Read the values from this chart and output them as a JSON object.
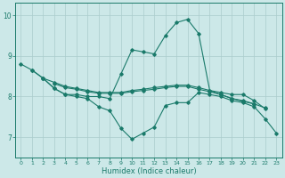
{
  "bg_color": "#cce8e8",
  "line_color": "#1a7a6a",
  "grid_color": "#aacccc",
  "xlabel": "Humidex (Indice chaleur)",
  "xlim": [
    -0.5,
    23.5
  ],
  "ylim": [
    6.5,
    10.3
  ],
  "yticks": [
    7,
    8,
    9,
    10
  ],
  "xticks": [
    0,
    1,
    2,
    3,
    4,
    5,
    6,
    7,
    8,
    9,
    10,
    11,
    12,
    13,
    14,
    15,
    16,
    17,
    18,
    19,
    20,
    21,
    22,
    23
  ],
  "series": [
    {
      "x": [
        0,
        1,
        2,
        3,
        4,
        5,
        6,
        7,
        8,
        9,
        10,
        11,
        12,
        13,
        14,
        15,
        16,
        17,
        18,
        19,
        20,
        21,
        22
      ],
      "y": [
        8.8,
        8.65,
        8.45,
        8.2,
        8.05,
        8.05,
        8.0,
        8.0,
        7.95,
        8.55,
        9.15,
        9.1,
        9.05,
        9.5,
        9.82,
        9.9,
        9.55,
        8.15,
        8.1,
        8.05,
        8.05,
        7.9,
        7.7
      ]
    },
    {
      "x": [
        1,
        2,
        3,
        4,
        5,
        6,
        7,
        8,
        9,
        10,
        11,
        12,
        13,
        14,
        15,
        16,
        17,
        18,
        19,
        20,
        21,
        22,
        23
      ],
      "y": [
        8.65,
        8.45,
        8.2,
        8.05,
        8.0,
        7.95,
        7.75,
        7.65,
        7.22,
        6.95,
        7.1,
        7.25,
        7.78,
        7.85,
        7.85,
        8.1,
        8.05,
        8.0,
        7.9,
        7.85,
        7.75,
        7.45,
        7.1
      ]
    },
    {
      "x": [
        2,
        3,
        4,
        5,
        6,
        7,
        8,
        9,
        10,
        11,
        12,
        13,
        14,
        15,
        16,
        17,
        18,
        19,
        20,
        21,
        22
      ],
      "y": [
        8.45,
        8.35,
        8.25,
        8.2,
        8.15,
        8.1,
        8.1,
        8.1,
        8.15,
        8.18,
        8.22,
        8.25,
        8.28,
        8.28,
        8.22,
        8.15,
        8.05,
        7.95,
        7.9,
        7.82,
        7.72
      ]
    },
    {
      "x": [
        3,
        4,
        5,
        6,
        7,
        8,
        9,
        10,
        11,
        12,
        13,
        14,
        15,
        16,
        17,
        18,
        19,
        20,
        21
      ],
      "y": [
        8.32,
        8.22,
        8.18,
        8.12,
        8.08,
        8.08,
        8.08,
        8.12,
        8.15,
        8.18,
        8.22,
        8.25,
        8.25,
        8.18,
        8.12,
        8.05,
        7.95,
        7.88,
        7.82
      ]
    }
  ]
}
